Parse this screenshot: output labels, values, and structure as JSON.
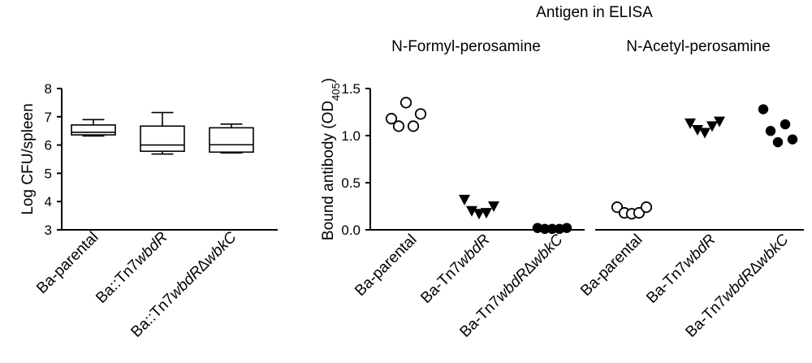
{
  "chart_data": [
    {
      "type": "box",
      "ylabel": "Log CFU/spleen",
      "ylim": [
        3,
        8
      ],
      "yticks": [
        "3",
        "4",
        "5",
        "6",
        "7",
        "8"
      ],
      "categories": [
        {
          "label": "Ba-parental",
          "italic": ""
        },
        {
          "label": "Ba::Tn7",
          "italic": "wbdR"
        },
        {
          "label": "Ba::Tn7",
          "italic": "wbdR∆wbkC"
        }
      ],
      "boxes": [
        {
          "min": 6.32,
          "q1": 6.36,
          "median": 6.45,
          "q3": 6.71,
          "max": 6.9
        },
        {
          "min": 5.68,
          "q1": 5.78,
          "median": 6.0,
          "q3": 6.67,
          "max": 7.15
        },
        {
          "min": 5.72,
          "q1": 5.75,
          "median": 6.01,
          "q3": 6.61,
          "max": 6.74
        }
      ]
    },
    {
      "type": "scatter",
      "title": "Antigen in ELISA",
      "ylabel_main": "Bound antibody (OD",
      "ylabel_sub": "405",
      "ylabel_end": ")",
      "ylim": [
        0,
        1.5
      ],
      "yticks": [
        "0.0",
        "0.5",
        "1.0",
        "1.5"
      ],
      "groups": [
        {
          "title": "N-Formyl-perosamine",
          "categories": [
            {
              "label": "Ba-parental",
              "italic": "",
              "marker": "open-circle",
              "values": [
                1.18,
                1.1,
                1.35,
                1.1,
                1.23
              ]
            },
            {
              "label": "Ba-Tn7",
              "italic": "wbdR",
              "marker": "triangle-down",
              "values": [
                0.32,
                0.2,
                0.17,
                0.18,
                0.25
              ]
            },
            {
              "label": "Ba-Tn7",
              "italic": "wbdR∆wbkC",
              "marker": "filled-circle",
              "values": [
                0.02,
                0.01,
                0.01,
                0.01,
                0.02
              ]
            }
          ]
        },
        {
          "title": "N-Acetyl-perosamine",
          "categories": [
            {
              "label": "Ba-parental",
              "italic": "",
              "marker": "open-circle",
              "values": [
                0.24,
                0.18,
                0.17,
                0.18,
                0.24
              ]
            },
            {
              "label": "Ba-Tn7",
              "italic": "wbdR",
              "marker": "triangle-down",
              "values": [
                1.13,
                1.06,
                1.03,
                1.1,
                1.15
              ]
            },
            {
              "label": "Ba-Tn7",
              "italic": "wbdR∆wbkC",
              "marker": "filled-circle",
              "values": [
                1.28,
                1.05,
                0.93,
                1.12,
                0.96
              ]
            }
          ]
        }
      ]
    }
  ]
}
